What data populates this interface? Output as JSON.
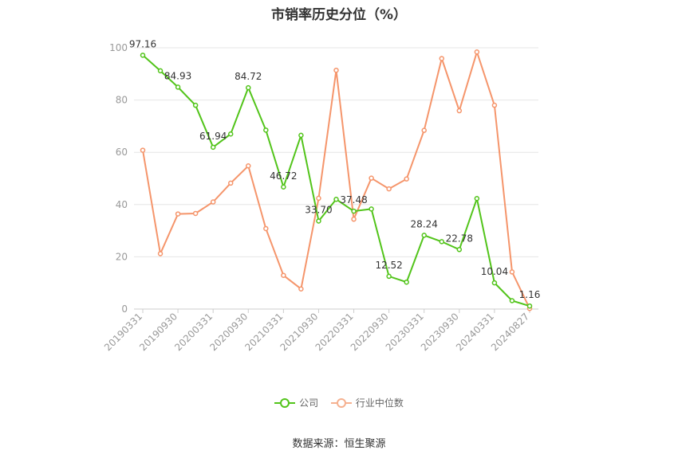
{
  "chart_data": {
    "type": "line",
    "title": "市销率历史分位（%）",
    "source": "数据来源：恒生聚源",
    "ylim": [
      0,
      100
    ],
    "yticks": [
      0,
      20,
      40,
      60,
      80,
      100
    ],
    "grid": true,
    "legend_position": "bottom",
    "x": [
      "20190331",
      "20190630",
      "20190930",
      "20191231",
      "20200331",
      "20200630",
      "20200930",
      "20201231",
      "20210331",
      "20210630",
      "20210930",
      "20211231",
      "20220331",
      "20220630",
      "20220930",
      "20221231",
      "20230331",
      "20230630",
      "20230930",
      "20231231",
      "20240331",
      "20240630",
      "20240827"
    ],
    "xticks": [
      "20190331",
      "20190930",
      "20200331",
      "20200930",
      "20210331",
      "20210930",
      "20220331",
      "20220930",
      "20230331",
      "20230930",
      "20240331",
      "20240827"
    ],
    "series": [
      {
        "name": "公司",
        "color": "#52c41a",
        "values": [
          97.16,
          91.2,
          84.93,
          78.0,
          61.94,
          67.0,
          84.72,
          68.5,
          46.72,
          66.5,
          33.7,
          42.0,
          37.48,
          38.3,
          12.52,
          10.3,
          28.24,
          25.8,
          22.78,
          42.3,
          10.04,
          3.2,
          1.16
        ],
        "labels": [
          "97.16",
          "",
          "84.93",
          "",
          "61.94",
          "",
          "84.72",
          "",
          "46.72",
          "",
          "33.70",
          "",
          "37.48",
          "",
          "12.52",
          "",
          "28.24",
          "",
          "22.78",
          "",
          "10.04",
          "",
          "1.16"
        ]
      },
      {
        "name": "行业中位数",
        "color": "#f5956b",
        "values": [
          60.8,
          21.2,
          36.4,
          36.6,
          41.0,
          48.2,
          54.8,
          30.8,
          12.9,
          7.7,
          42.4,
          91.4,
          34.4,
          50.1,
          46.0,
          49.8,
          68.4,
          95.9,
          75.9,
          98.4,
          78.0,
          14.2,
          0.2
        ],
        "labels": []
      }
    ]
  }
}
